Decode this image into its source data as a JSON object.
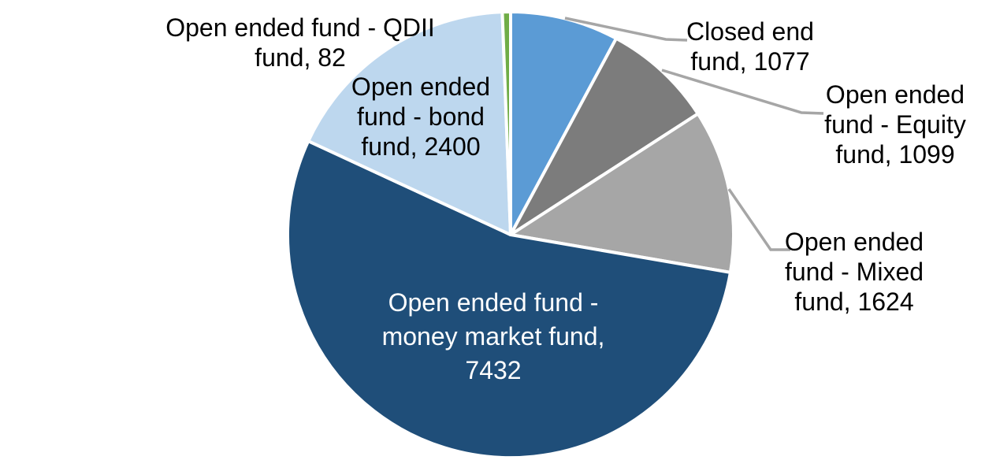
{
  "chart_data": {
    "type": "pie",
    "legend": "none",
    "background": "#FFFFFF",
    "slice_border_color": "#FFFFFF",
    "leader_line_color": "#A6A6A6",
    "label_color": "#000000",
    "inside_label_color": "#FFFFFF",
    "start_angle_deg": 0,
    "direction": "clockwise",
    "slices": [
      {
        "id": "closed-end-fund",
        "name": "Closed end fund",
        "value": 1077,
        "color": "#5B9BD5"
      },
      {
        "id": "open-ended-equity-fund",
        "name": "Open ended fund - Equity fund",
        "value": 1099,
        "color": "#7C7C7C"
      },
      {
        "id": "open-ended-mixed-fund",
        "name": "Open ended fund - Mixed fund",
        "value": 1624,
        "color": "#A6A6A6"
      },
      {
        "id": "open-ended-money-market-fund",
        "name": "Open ended fund - money market fund",
        "value": 7432,
        "color": "#1F4E79"
      },
      {
        "id": "open-ended-bond-fund",
        "name": "Open ended fund - bond fund",
        "value": 2400,
        "color": "#BDD7EE"
      },
      {
        "id": "open-ended-qdii-fund",
        "name": "Open ended fund - QDII fund",
        "value": 82,
        "color": "#70AD47"
      }
    ]
  },
  "labels": {
    "qdii": {
      "lines": [
        "Open ended fund - QDII",
        "fund, 82"
      ]
    },
    "bond": {
      "lines": [
        "Open ended",
        "fund - bond",
        "fund, 2400"
      ]
    },
    "closed_end": {
      "lines": [
        "Closed end",
        "fund, 1077"
      ]
    },
    "equity": {
      "lines": [
        "Open ended",
        "fund - Equity",
        "fund, 1099"
      ]
    },
    "mixed": {
      "lines": [
        "Open ended",
        "fund - Mixed",
        "fund, 1624"
      ]
    },
    "money_market": {
      "lines": [
        "Open ended fund -",
        "money market fund,",
        "7432"
      ]
    }
  }
}
